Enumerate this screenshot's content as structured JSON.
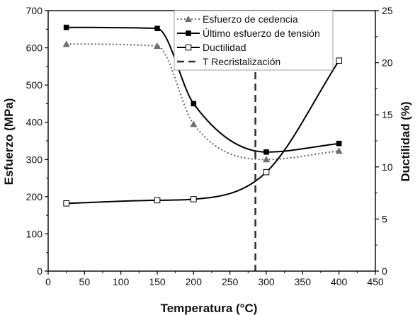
{
  "chart_data": {
    "type": "line",
    "title": "",
    "xlabel": "Temperatura (°C)",
    "ylabel": "Esfuerzo (MPa)",
    "y2label": "Ductilidad (%)",
    "xlim": [
      0,
      450
    ],
    "ylim": [
      0,
      700
    ],
    "y2lim": [
      0,
      25
    ],
    "x_ticks": [
      0,
      50,
      100,
      150,
      200,
      250,
      300,
      350,
      400,
      450
    ],
    "y_ticks": [
      0,
      100,
      200,
      300,
      400,
      500,
      600,
      700
    ],
    "y2_ticks": [
      0,
      5,
      10,
      15,
      20,
      25
    ],
    "grid": false,
    "legend_position": "top-center",
    "series": [
      {
        "name": "Esfuerzo de cedencia",
        "axis": "left",
        "line_style": "dotted",
        "marker": "triangle",
        "color": "#6e6e6e",
        "x": [
          25,
          150,
          200,
          300,
          400
        ],
        "values": [
          610,
          605,
          395,
          300,
          323
        ]
      },
      {
        "name": "Último esfuerzo de tensión",
        "axis": "left",
        "line_style": "solid",
        "marker": "square-filled",
        "color": "#000000",
        "x": [
          25,
          150,
          200,
          300,
          400
        ],
        "values": [
          655,
          652,
          450,
          320,
          343
        ]
      },
      {
        "name": "Ductilidad",
        "axis": "right",
        "line_style": "solid",
        "marker": "square-open",
        "color": "#000000",
        "x": [
          25,
          150,
          200,
          300,
          400
        ],
        "values": [
          6.5,
          6.8,
          6.9,
          9.5,
          20.2
        ]
      },
      {
        "name": "T Recristalización",
        "axis": "left",
        "line_style": "dashed",
        "marker": "none",
        "color": "#333333",
        "vertical_at_x": 285
      }
    ]
  }
}
